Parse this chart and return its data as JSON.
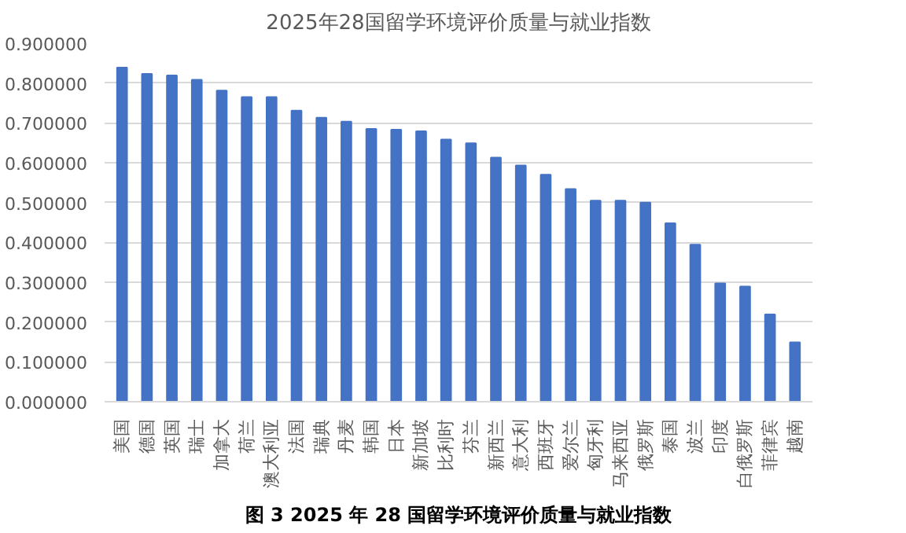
{
  "chart_data": {
    "type": "bar",
    "title": "2025年28国留学环境评价质量与就业指数",
    "categories": [
      "美国",
      "德国",
      "英国",
      "瑞士",
      "加拿大",
      "荷兰",
      "澳大利亚",
      "法国",
      "瑞典",
      "丹麦",
      "韩国",
      "日本",
      "新加坡",
      "比利时",
      "芬兰",
      "新西兰",
      "意大利",
      "西班牙",
      "爱尔兰",
      "匈牙利",
      "马来西亚",
      "俄罗斯",
      "泰国",
      "波兰",
      "印度",
      "白俄罗斯",
      "菲律宾",
      "越南"
    ],
    "values": [
      0.839,
      0.823,
      0.819,
      0.808,
      0.781,
      0.765,
      0.765,
      0.731,
      0.713,
      0.703,
      0.685,
      0.683,
      0.679,
      0.658,
      0.649,
      0.613,
      0.593,
      0.57,
      0.534,
      0.505,
      0.505,
      0.5,
      0.448,
      0.394,
      0.297,
      0.289,
      0.219,
      0.149
    ],
    "color": "#4472c4",
    "ylim": [
      0,
      0.9
    ],
    "yticks": [
      {
        "value": 0,
        "label": "0.000000"
      },
      {
        "value": 0.1,
        "label": "0.100000"
      },
      {
        "value": 0.2,
        "label": "0.200000"
      },
      {
        "value": 0.3,
        "label": "0.300000"
      },
      {
        "value": 0.4,
        "label": "0.400000"
      },
      {
        "value": 0.5,
        "label": "0.500000"
      },
      {
        "value": 0.6,
        "label": "0.600000"
      },
      {
        "value": 0.7,
        "label": "0.700000"
      },
      {
        "value": 0.8,
        "label": "0.800000"
      },
      {
        "value": 0.9,
        "label": "0.900000"
      }
    ],
    "grid": "y",
    "annotations": [
      "图 3 2025 年 28 国留学环境评价质量与就业指数"
    ]
  }
}
